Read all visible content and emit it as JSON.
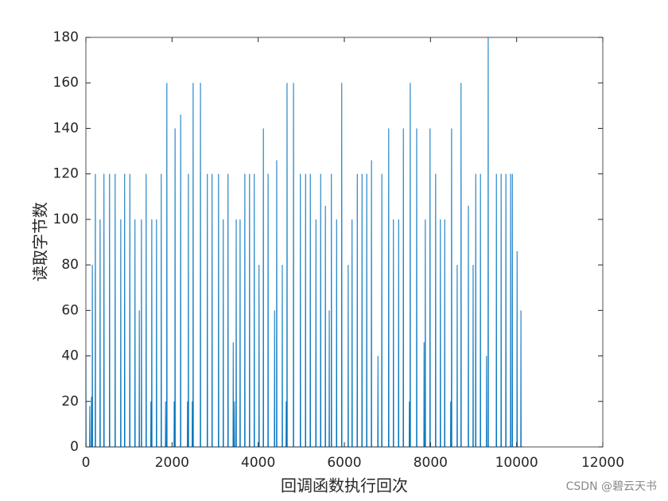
{
  "chart_data": {
    "type": "line",
    "xlabel": "回调函数执行回次",
    "ylabel": "读取字节数",
    "watermark": "CSDN @碧云天书",
    "xlim": [
      0,
      12000
    ],
    "xticks": [
      0,
      2000,
      4000,
      6000,
      8000,
      10000,
      12000
    ],
    "ylim": [
      0,
      180
    ],
    "yticks": [
      0,
      20,
      40,
      60,
      80,
      100,
      120,
      140,
      160,
      180
    ],
    "series": [
      {
        "color": "#0072bd",
        "x": [
          0,
          5,
          85,
          90,
          95,
          125,
          130,
          135,
          145,
          150,
          155,
          215,
          220,
          225,
          325,
          330,
          335,
          415,
          420,
          425,
          545,
          550,
          555,
          675,
          680,
          685,
          805,
          810,
          815,
          895,
          900,
          905,
          1015,
          1020,
          1025,
          1135,
          1140,
          1145,
          1235,
          1240,
          1245,
          1285,
          1290,
          1295,
          1395,
          1400,
          1405,
          1505,
          1510,
          1515,
          1525,
          1530,
          1535,
          1635,
          1640,
          1645,
          1745,
          1750,
          1755,
          1845,
          1850,
          1855,
          1875,
          1880,
          1885,
          2045,
          2050,
          2055,
          2065,
          2070,
          2075,
          2195,
          2200,
          2205,
          2355,
          2360,
          2365,
          2375,
          2380,
          2385,
          2465,
          2470,
          2475,
          2485,
          2490,
          2495,
          2655,
          2660,
          2665,
          2815,
          2820,
          2825,
          2925,
          2930,
          2935,
          3075,
          3080,
          3085,
          3185,
          3190,
          3195,
          3295,
          3300,
          3305,
          3415,
          3420,
          3425,
          3445,
          3450,
          3455,
          3485,
          3490,
          3495,
          3575,
          3580,
          3585,
          3685,
          3690,
          3695,
          3795,
          3800,
          3805,
          3905,
          3910,
          3915,
          4015,
          4020,
          4025,
          4115,
          4120,
          4125,
          4225,
          4230,
          4235,
          4375,
          4380,
          4385,
          4425,
          4430,
          4435,
          4555,
          4560,
          4565,
          4645,
          4650,
          4655,
          4665,
          4670,
          4675,
          4815,
          4820,
          4825,
          4975,
          4980,
          4985,
          5095,
          5100,
          5105,
          5205,
          5210,
          5215,
          5335,
          5340,
          5345,
          5445,
          5450,
          5455,
          5555,
          5560,
          5565,
          5645,
          5650,
          5655,
          5695,
          5700,
          5705,
          5815,
          5820,
          5825,
          5935,
          5940,
          5945,
          6085,
          6090,
          6095,
          6175,
          6180,
          6185,
          6295,
          6300,
          6305,
          6405,
          6410,
          6415,
          6515,
          6520,
          6525,
          6625,
          6630,
          6635,
          6775,
          6780,
          6785,
          6865,
          6870,
          6875,
          7025,
          7030,
          7035,
          7135,
          7140,
          7145,
          7255,
          7260,
          7265,
          7365,
          7370,
          7375,
          7505,
          7510,
          7515,
          7525,
          7530,
          7535,
          7675,
          7680,
          7685,
          7845,
          7850,
          7855,
          7875,
          7880,
          7885,
          7985,
          7990,
          7995,
          8115,
          8120,
          8125,
          8225,
          8230,
          8235,
          8325,
          8330,
          8335,
          8465,
          8470,
          8475,
          8485,
          8490,
          8495,
          8615,
          8620,
          8625,
          8705,
          8710,
          8715,
          8875,
          8880,
          8885,
          8985,
          8990,
          8995,
          9045,
          9050,
          9055,
          9155,
          9160,
          9165,
          9295,
          9300,
          9305,
          9335,
          9340,
          9345,
          9525,
          9530,
          9535,
          9635,
          9640,
          9645,
          9745,
          9750,
          9755,
          9855,
          9860,
          9865,
          9895,
          9900,
          9905,
          10005,
          10010,
          10015,
          10095,
          10100,
          10105,
          10150
        ],
        "values": [
          40,
          0,
          0,
          18,
          0,
          0,
          22,
          0,
          0,
          80,
          0,
          0,
          120,
          0,
          0,
          100,
          0,
          0,
          120,
          0,
          0,
          120,
          0,
          0,
          120,
          0,
          0,
          100,
          0,
          0,
          120,
          0,
          0,
          120,
          0,
          0,
          100,
          0,
          0,
          60,
          0,
          0,
          100,
          0,
          0,
          120,
          0,
          0,
          20,
          0,
          0,
          100,
          0,
          0,
          100,
          0,
          0,
          120,
          0,
          0,
          20,
          0,
          0,
          160,
          0,
          0,
          20,
          0,
          0,
          140,
          0,
          0,
          146,
          0,
          0,
          20,
          0,
          0,
          120,
          0,
          0,
          20,
          0,
          0,
          160,
          0,
          0,
          160,
          0,
          0,
          120,
          0,
          0,
          120,
          0,
          0,
          120,
          0,
          0,
          100,
          0,
          0,
          120,
          0,
          0,
          46,
          0,
          0,
          20,
          0,
          0,
          100,
          0,
          0,
          100,
          0,
          0,
          120,
          0,
          0,
          120,
          0,
          0,
          120,
          0,
          0,
          80,
          0,
          0,
          140,
          0,
          0,
          120,
          0,
          0,
          60,
          0,
          0,
          126,
          0,
          0,
          80,
          0,
          0,
          20,
          0,
          0,
          160,
          0,
          0,
          160,
          0,
          0,
          120,
          0,
          0,
          120,
          0,
          0,
          120,
          0,
          0,
          100,
          0,
          0,
          120,
          0,
          0,
          106,
          0,
          0,
          60,
          0,
          0,
          120,
          0,
          0,
          100,
          0,
          0,
          160,
          0,
          0,
          80,
          0,
          0,
          100,
          0,
          0,
          120,
          0,
          0,
          120,
          0,
          0,
          120,
          0,
          0,
          126,
          0,
          0,
          40,
          0,
          0,
          120,
          0,
          0,
          140,
          0,
          0,
          100,
          0,
          0,
          100,
          0,
          0,
          140,
          0,
          0,
          20,
          0,
          0,
          160,
          0,
          0,
          140,
          0,
          0,
          46,
          0,
          0,
          100,
          0,
          0,
          140,
          0,
          0,
          120,
          0,
          0,
          100,
          0,
          0,
          100,
          0,
          0,
          20,
          0,
          0,
          140,
          0,
          0,
          80,
          0,
          0,
          160,
          0,
          0,
          106,
          0,
          0,
          80,
          0,
          0,
          120,
          0,
          0,
          120,
          0,
          0,
          40,
          0,
          0,
          180,
          0,
          0,
          120,
          0,
          0,
          120,
          0,
          0,
          120,
          0,
          0,
          120,
          0,
          0,
          120,
          0,
          0,
          86,
          0,
          0,
          60,
          0,
          0
        ]
      }
    ]
  }
}
